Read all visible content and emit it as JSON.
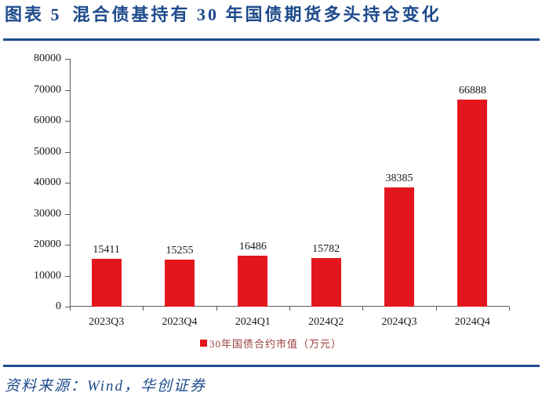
{
  "figure": {
    "label": "图表 5",
    "title": "混合债基持有 30 年国债期货多头持仓变化"
  },
  "source_note": "资料来源：Wind，华创证券",
  "colors": {
    "accent_navy": "#1E4B8C",
    "bar_red": "#E3161E",
    "legend_text_red": "#9B3D3F",
    "axis_gray": "#5A5A5A",
    "label_black": "#1A1A1A"
  },
  "chart_data": {
    "type": "bar",
    "title": "混合债基持有 30 年国债期货多头持仓变化",
    "categories": [
      "2023Q3",
      "2023Q4",
      "2024Q1",
      "2024Q2",
      "2024Q3",
      "2024Q4"
    ],
    "values": [
      15411,
      15255,
      16486,
      15782,
      38385,
      66888
    ],
    "series_name": "30年国债合约市值（万元）",
    "data_labels_shown": true,
    "xlabel": "",
    "ylabel": "",
    "ylim": [
      0,
      80000
    ],
    "yticks": [
      0,
      10000,
      20000,
      30000,
      40000,
      50000,
      60000,
      70000,
      80000
    ],
    "grid": false,
    "legend_position": "bottom"
  }
}
